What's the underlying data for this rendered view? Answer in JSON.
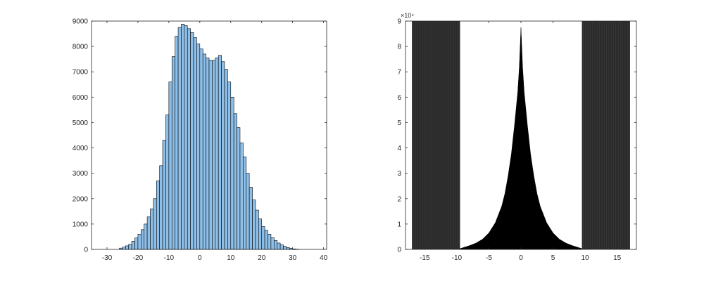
{
  "colors": {
    "hist_face": "#8ebfe8",
    "hist_edge": "#000000",
    "dark_band": "#2b2b2b",
    "curve_fill": "#000000",
    "axis": "#262626",
    "background": "#ffffff"
  },
  "chart_data": [
    {
      "type": "bar",
      "title": "",
      "xlabel": "",
      "ylabel": "",
      "xlim": [
        -35,
        41
      ],
      "ylim": [
        0,
        9000
      ],
      "xticks": [
        -30,
        -20,
        -10,
        0,
        10,
        20,
        30,
        40
      ],
      "yticks": [
        0,
        1000,
        2000,
        3000,
        4000,
        5000,
        6000,
        7000,
        8000,
        9000
      ],
      "x_tick_labels": [
        "-30",
        "-20",
        "-10",
        "0",
        "10",
        "20",
        "30",
        "40"
      ],
      "y_tick_labels": [
        "0",
        "1000",
        "2000",
        "3000",
        "4000",
        "5000",
        "6000",
        "7000",
        "8000",
        "9000"
      ],
      "bin_width": 1,
      "bin_starts": [
        -26,
        -25,
        -24,
        -23,
        -22,
        -21,
        -20,
        -19,
        -18,
        -17,
        -16,
        -15,
        -14,
        -13,
        -12,
        -11,
        -10,
        -9,
        -8,
        -7,
        -6,
        -5,
        -4,
        -3,
        -2,
        -1,
        0,
        1,
        2,
        3,
        4,
        5,
        6,
        7,
        8,
        9,
        10,
        11,
        12,
        13,
        14,
        15,
        16,
        17,
        18,
        19,
        20,
        21,
        22,
        23,
        24,
        25,
        26,
        27,
        28,
        29,
        30,
        31
      ],
      "counts": [
        50,
        90,
        140,
        200,
        320,
        450,
        600,
        780,
        1000,
        1280,
        1600,
        2000,
        2700,
        3300,
        4300,
        5300,
        6600,
        7600,
        8400,
        8750,
        8880,
        8820,
        8700,
        8550,
        8350,
        8100,
        7900,
        7700,
        7550,
        7450,
        7450,
        7550,
        7650,
        7400,
        7100,
        6600,
        6000,
        5350,
        4800,
        4200,
        3650,
        3000,
        2450,
        1950,
        1550,
        1200,
        900,
        750,
        600,
        460,
        350,
        250,
        180,
        120,
        70,
        40,
        20,
        10
      ],
      "grid": false,
      "legend": "none"
    },
    {
      "type": "area",
      "title": "",
      "xlabel": "",
      "ylabel": "",
      "xlim": [
        -18,
        18
      ],
      "ylim": [
        0,
        90000
      ],
      "xticks": [
        -15,
        -10,
        -5,
        0,
        5,
        10,
        15
      ],
      "yticks": [
        0,
        10000,
        20000,
        30000,
        40000,
        50000,
        60000,
        70000,
        80000,
        90000
      ],
      "x_tick_labels": [
        "-15",
        "-10",
        "-5",
        "0",
        "5",
        "10",
        "15"
      ],
      "y_tick_labels": [
        "0",
        "1",
        "2",
        "3",
        "4",
        "5",
        "6",
        "7",
        "8",
        "9"
      ],
      "y_exponent_label": "×10⁴",
      "x": [
        -9.5,
        -8,
        -7,
        -6,
        -5,
        -4,
        -3,
        -2.5,
        -2,
        -1.5,
        -1,
        -0.5,
        -0.25,
        0,
        0.25,
        0.5,
        1,
        1.5,
        2,
        2.5,
        3,
        4,
        5,
        6,
        7,
        8,
        9.5
      ],
      "y": [
        300,
        1500,
        2500,
        4000,
        6500,
        10500,
        17000,
        22000,
        29000,
        37500,
        49000,
        62000,
        72000,
        87500,
        72000,
        62000,
        49000,
        37500,
        29000,
        22000,
        17000,
        10500,
        6500,
        4000,
        2500,
        1500,
        300
      ],
      "dark_bands": [
        [
          -17,
          -9.5
        ],
        [
          9.5,
          17
        ]
      ],
      "grid": false,
      "legend": "none"
    }
  ]
}
